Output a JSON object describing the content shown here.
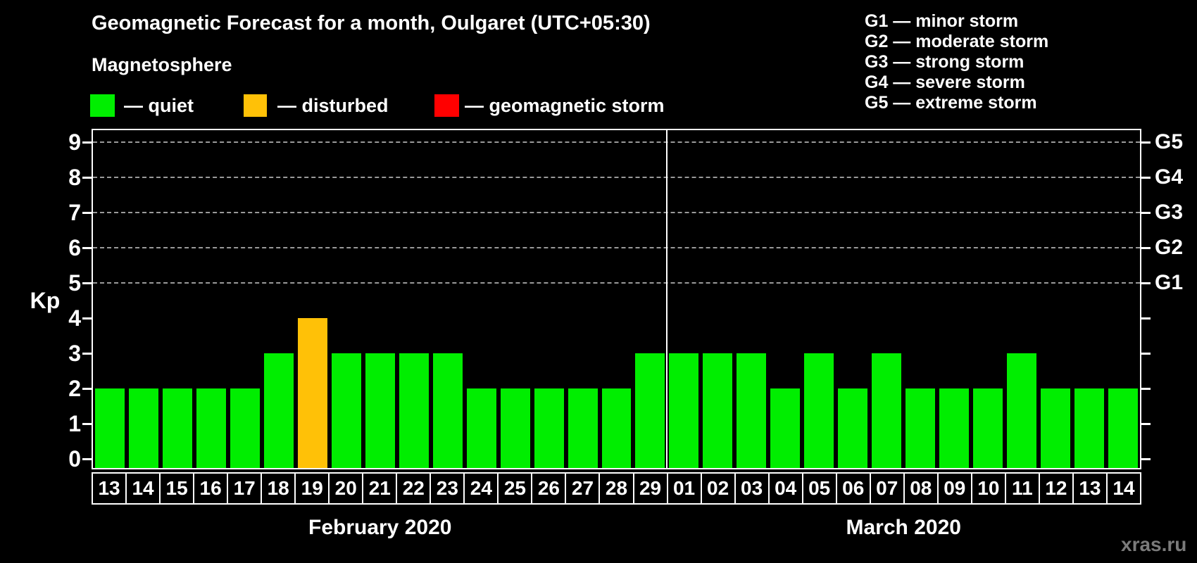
{
  "header": {
    "title": "Geomagnetic Forecast for a month, Oulgaret (UTC+05:30)",
    "subtitle": "Magnetosphere"
  },
  "legend": {
    "items": [
      {
        "id": "quiet",
        "label": "— quiet",
        "color": "#00EE00"
      },
      {
        "id": "disturbed",
        "label": "— disturbed",
        "color": "#FFC107"
      },
      {
        "id": "storm",
        "label": "— geomagnetic storm",
        "color": "#FF0000"
      }
    ]
  },
  "g_scale_legend": [
    "G1 — minor storm",
    "G2 — moderate storm",
    "G3 — strong storm",
    "G4 — severe storm",
    "G5 — extreme storm"
  ],
  "watermark": "xras.ru",
  "chart_data": {
    "type": "bar",
    "title": "Geomagnetic Forecast for a month, Oulgaret (UTC+05:30)",
    "xlabel": "",
    "ylabel": "Kp",
    "ylim": [
      0,
      9
    ],
    "yticks": [
      0,
      1,
      2,
      3,
      4,
      5,
      6,
      7,
      8,
      9
    ],
    "grid": "dashed horizontal gridlines at Kp 5-9 only",
    "legend_position": "top-left",
    "status_colors": {
      "quiet": "#00EE00",
      "disturbed": "#FFC107",
      "storm": "#FF0000"
    },
    "right_axis_labels": [
      {
        "label": "G1",
        "kp": 5
      },
      {
        "label": "G2",
        "kp": 6
      },
      {
        "label": "G3",
        "kp": 7
      },
      {
        "label": "G4",
        "kp": 8
      },
      {
        "label": "G5",
        "kp": 9
      }
    ],
    "months": [
      {
        "label": "February 2020",
        "day_count": 17
      },
      {
        "label": "March 2020",
        "day_count": 14
      }
    ],
    "bars": [
      {
        "day": "13",
        "kp": 2,
        "status": "quiet"
      },
      {
        "day": "14",
        "kp": 2,
        "status": "quiet"
      },
      {
        "day": "15",
        "kp": 2,
        "status": "quiet"
      },
      {
        "day": "16",
        "kp": 2,
        "status": "quiet"
      },
      {
        "day": "17",
        "kp": 2,
        "status": "quiet"
      },
      {
        "day": "18",
        "kp": 3,
        "status": "quiet"
      },
      {
        "day": "19",
        "kp": 4,
        "status": "disturbed"
      },
      {
        "day": "20",
        "kp": 3,
        "status": "quiet"
      },
      {
        "day": "21",
        "kp": 3,
        "status": "quiet"
      },
      {
        "day": "22",
        "kp": 3,
        "status": "quiet"
      },
      {
        "day": "23",
        "kp": 3,
        "status": "quiet"
      },
      {
        "day": "24",
        "kp": 2,
        "status": "quiet"
      },
      {
        "day": "25",
        "kp": 2,
        "status": "quiet"
      },
      {
        "day": "26",
        "kp": 2,
        "status": "quiet"
      },
      {
        "day": "27",
        "kp": 2,
        "status": "quiet"
      },
      {
        "day": "28",
        "kp": 2,
        "status": "quiet"
      },
      {
        "day": "29",
        "kp": 3,
        "status": "quiet"
      },
      {
        "day": "01",
        "kp": 3,
        "status": "quiet"
      },
      {
        "day": "02",
        "kp": 3,
        "status": "quiet"
      },
      {
        "day": "03",
        "kp": 3,
        "status": "quiet"
      },
      {
        "day": "04",
        "kp": 2,
        "status": "quiet"
      },
      {
        "day": "05",
        "kp": 3,
        "status": "quiet"
      },
      {
        "day": "06",
        "kp": 2,
        "status": "quiet"
      },
      {
        "day": "07",
        "kp": 3,
        "status": "quiet"
      },
      {
        "day": "08",
        "kp": 2,
        "status": "quiet"
      },
      {
        "day": "09",
        "kp": 2,
        "status": "quiet"
      },
      {
        "day": "10",
        "kp": 2,
        "status": "quiet"
      },
      {
        "day": "11",
        "kp": 3,
        "status": "quiet"
      },
      {
        "day": "12",
        "kp": 2,
        "status": "quiet"
      },
      {
        "day": "13",
        "kp": 2,
        "status": "quiet"
      },
      {
        "day": "14",
        "kp": 2,
        "status": "quiet"
      }
    ]
  }
}
